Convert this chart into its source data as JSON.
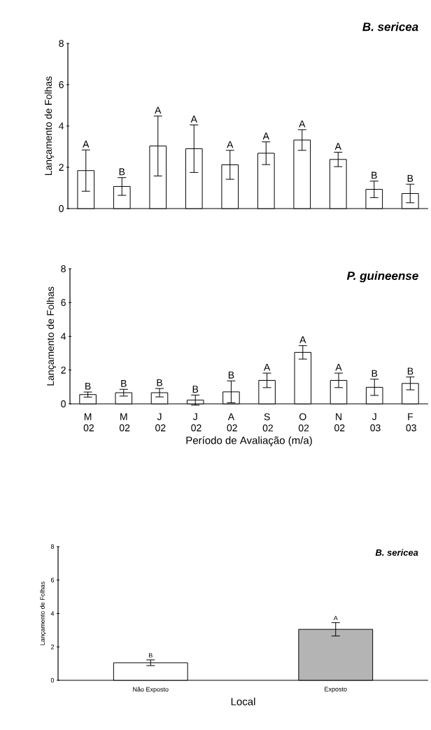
{
  "chart_data": [
    {
      "type": "bar",
      "title": "B. sericea",
      "ylabel": "Lançamento de Folhas",
      "categories": [
        null,
        null,
        null,
        null,
        null,
        null,
        null,
        null,
        null,
        null
      ],
      "values": [
        1.84,
        1.07,
        3.03,
        2.9,
        2.12,
        2.68,
        3.32,
        2.38,
        0.93,
        0.73
      ],
      "errors": [
        1.0,
        0.43,
        1.45,
        1.15,
        0.7,
        0.55,
        0.5,
        0.35,
        0.4,
        0.45
      ],
      "color": "#ffffff",
      "annotations": [
        "A",
        "B",
        "A",
        "A",
        "A",
        "A",
        "A",
        "A",
        "B",
        "B"
      ],
      "ylim": [
        0,
        8
      ],
      "yticks": [
        0,
        2,
        4,
        6,
        8
      ],
      "tick_labels": "y"
    },
    {
      "type": "bar",
      "title": "P. guineense",
      "ylabel": "Lançamento de Folhas",
      "xlabel": "Período de Avaliação (m/a)",
      "categories": [
        "M 02",
        "M 02",
        "J 02",
        "J 02",
        "A 02",
        "S 02",
        "O 02",
        "N 02",
        "J 03",
        "F 03"
      ],
      "values": [
        0.55,
        0.66,
        0.66,
        0.22,
        0.71,
        1.39,
        3.05,
        1.39,
        0.98,
        1.21
      ],
      "errors": [
        0.15,
        0.2,
        0.25,
        0.3,
        0.65,
        0.43,
        0.4,
        0.43,
        0.48,
        0.38
      ],
      "color": "#ffffff",
      "annotations": [
        "B",
        "B",
        "B",
        "B",
        "B",
        "A",
        "A",
        "A",
        "B",
        "B"
      ],
      "ylim": [
        0,
        8
      ],
      "yticks": [
        0,
        2,
        4,
        6,
        8
      ]
    },
    {
      "type": "bar",
      "title": "B. sericea",
      "ylabel": "Lançamento de Folhas",
      "xlabel": "Local",
      "categories": [
        "Não Exposto",
        "Exposto"
      ],
      "values": [
        1.05,
        3.05
      ],
      "errors": [
        0.17,
        0.4
      ],
      "colors": [
        "#ffffff",
        "#b4b4b4"
      ],
      "annotations": [
        "B",
        "A"
      ],
      "ylim": [
        0,
        8
      ],
      "yticks": [
        0,
        2,
        4,
        6,
        8
      ]
    }
  ]
}
